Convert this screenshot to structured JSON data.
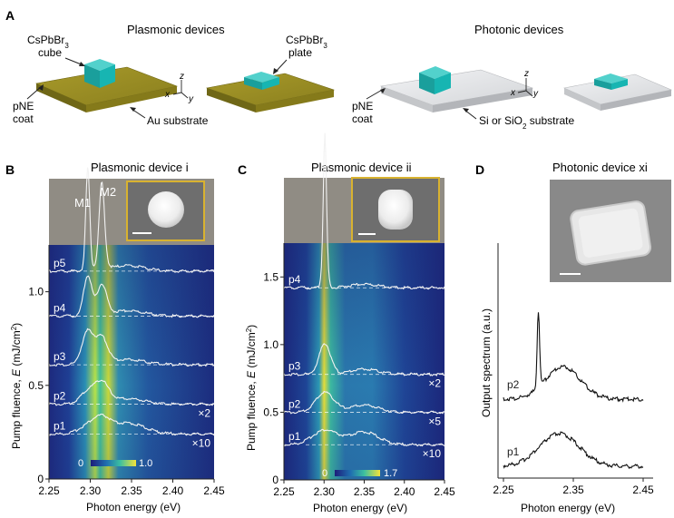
{
  "panel_a": {
    "letter": "A",
    "plasmonic_title": "Plasmonic devices",
    "photonic_title": "Photonic devices",
    "cube_label_1": "CsPbBr",
    "cube_label_sub": "3",
    "cube_label_2": "cube",
    "plate_label_1": "CsPbBr",
    "plate_label_sub": "3",
    "plate_label_2": "plate",
    "pne_label_1": "pNE",
    "pne_label_2": "coat",
    "au_label": "Au substrate",
    "si_label_1": "Si or SiO",
    "si_label_sub": "2",
    "si_label_2": " substrate",
    "axis_x": "x",
    "axis_y": "y",
    "axis_z": "z",
    "colors": {
      "gold": "#9c9020",
      "silver": "#dfe0e2",
      "cube": "#1fb3b1"
    }
  },
  "panel_b": {
    "letter": "B",
    "title": "Plasmonic device i",
    "peak1": "M1",
    "peak2": "M2",
    "colorbar_min": "0",
    "colorbar_max": "1.0",
    "ylabel_main": "Pump fluence, ",
    "ylabel_var": "E",
    "ylabel_unit": " (mJ/cm",
    "ylabel_sup": "2",
    "ylabel_end": ")",
    "xlabel": "Photon energy (eV)"
  },
  "panel_c": {
    "letter": "C",
    "title": "Plasmonic device ii",
    "colorbar_min": "0",
    "colorbar_max": "1.7",
    "ylabel_main": "Pump fluence, ",
    "ylabel_var": "E",
    "ylabel_unit": " (mJ/cm",
    "ylabel_sup": "2",
    "ylabel_end": ")",
    "xlabel": "Photon energy (eV)"
  },
  "panel_d": {
    "letter": "D",
    "title": "Photonic device xi",
    "ylabel": "Output spectrum (a.u.)",
    "xlabel": "Photon energy (eV)"
  },
  "chart_data": [
    {
      "type": "heatmap",
      "panel": "B",
      "xlim": [
        2.25,
        2.45
      ],
      "ylim": [
        0,
        1.25
      ],
      "x_ticks": [
        "2.25",
        "2.30",
        "2.35",
        "2.40",
        "2.45"
      ],
      "y_ticks": [
        "0",
        "0.5",
        "1.0"
      ],
      "curve_levels": [
        {
          "name": "p1",
          "fluence": 0.24,
          "scale": "×10"
        },
        {
          "name": "p2",
          "fluence": 0.4,
          "scale": "×2"
        },
        {
          "name": "p3",
          "fluence": 0.61,
          "scale": ""
        },
        {
          "name": "p4",
          "fluence": 0.87,
          "scale": ""
        },
        {
          "name": "p5",
          "fluence": 1.11,
          "scale": ""
        }
      ],
      "peaks_eV": {
        "M1": 2.297,
        "M2": 2.314
      }
    },
    {
      "type": "heatmap",
      "panel": "C",
      "xlim": [
        2.25,
        2.45
      ],
      "ylim": [
        0,
        1.75
      ],
      "x_ticks": [
        "2.25",
        "2.30",
        "2.35",
        "2.40",
        "2.45"
      ],
      "y_ticks": [
        "0",
        "0.5",
        "1.0",
        "1.5"
      ],
      "curve_levels": [
        {
          "name": "p1",
          "fluence": 0.26,
          "scale": "×10"
        },
        {
          "name": "p2",
          "fluence": 0.5,
          "scale": "×5"
        },
        {
          "name": "p3",
          "fluence": 0.78,
          "scale": "×2"
        },
        {
          "name": "p4",
          "fluence": 1.42,
          "scale": ""
        }
      ],
      "peak_eV": 2.301
    },
    {
      "type": "line",
      "panel": "D",
      "xlim": [
        2.25,
        2.45
      ],
      "x_ticks": [
        "2.25",
        "2.35",
        "2.45"
      ],
      "series": [
        {
          "name": "p1",
          "peak_eV": 2.33
        },
        {
          "name": "p2",
          "peak_eV": 2.3
        }
      ]
    }
  ]
}
